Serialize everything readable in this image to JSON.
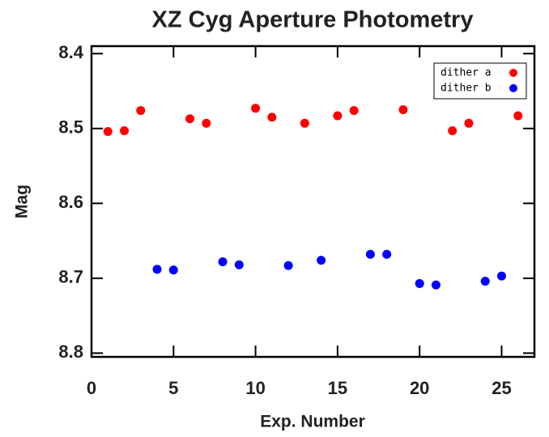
{
  "chart_data": {
    "type": "scatter",
    "title": "XZ Cyg Aperture Photometry",
    "x_label": "Exp. Number",
    "y_label": "Mag",
    "xlim": [
      0,
      27
    ],
    "xticks": [
      0,
      5,
      10,
      15,
      20,
      25
    ],
    "ylim": [
      8.39,
      8.805
    ],
    "yticks": [
      8.4,
      8.5,
      8.6,
      8.7,
      8.8
    ],
    "y_inverted": true,
    "legend": "upper right",
    "series": [
      {
        "name": "dither a",
        "color": "#ff0000",
        "x": [
          1,
          2,
          3,
          6,
          7,
          10,
          11,
          13,
          15,
          16,
          19,
          22,
          23,
          26
        ],
        "values": [
          8.504,
          8.503,
          8.476,
          8.487,
          8.493,
          8.473,
          8.485,
          8.493,
          8.483,
          8.476,
          8.475,
          8.503,
          8.493,
          8.483
        ]
      },
      {
        "name": "dither b",
        "color": "#0000ff",
        "x": [
          4,
          5,
          8,
          9,
          12,
          14,
          17,
          18,
          20,
          21,
          24,
          25
        ],
        "values": [
          8.688,
          8.689,
          8.678,
          8.682,
          8.683,
          8.676,
          8.668,
          8.668,
          8.707,
          8.709,
          8.704,
          8.697
        ]
      }
    ]
  }
}
